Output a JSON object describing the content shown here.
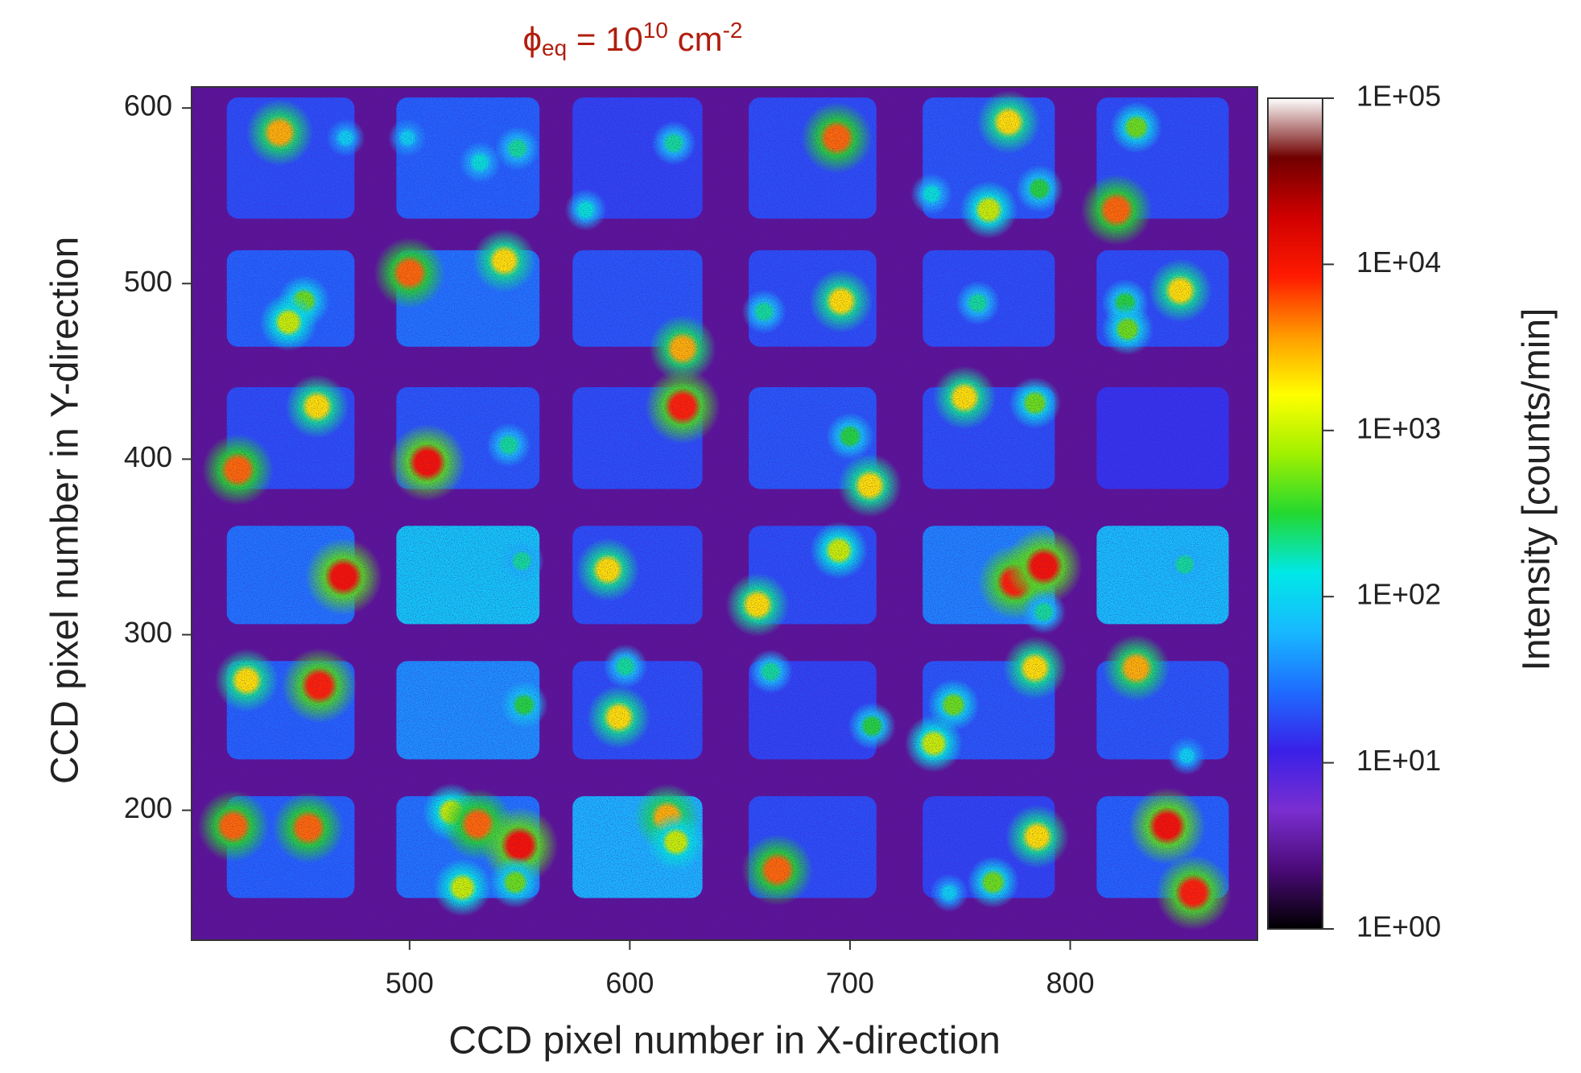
{
  "chart_data": {
    "type": "heatmap",
    "title": {
      "symbol": "ϕ",
      "subscript": "eq",
      "text": " = 10",
      "exponent": "10",
      "unit": " cm",
      "unit_exponent": "-2"
    },
    "x_label": "CCD pixel number in X-direction",
    "y_label": "CCD pixel number in Y-direction",
    "colorbar_label": "Intensity [counts/min]",
    "xlim": [
      401,
      885
    ],
    "xticks": [
      500,
      600,
      700,
      800
    ],
    "ylim": [
      126,
      612
    ],
    "yticks": [
      200,
      300,
      400,
      500,
      600
    ],
    "zlim": [
      1,
      100000
    ],
    "zlog": true,
    "zticks": [
      {
        "value": 1,
        "label": "1E+00"
      },
      {
        "value": 10,
        "label": "1E+01"
      },
      {
        "value": 100,
        "label": "1E+02"
      },
      {
        "value": 1000,
        "label": "1E+03"
      },
      {
        "value": 10000,
        "label": "1E+04"
      },
      {
        "value": 100000,
        "label": "1E+05"
      }
    ],
    "colormap": [
      "#000000",
      "#4a0a78",
      "#7a2fd0",
      "#3a20e8",
      "#1e6cff",
      "#18b8ff",
      "#00e8e8",
      "#22d830",
      "#a0f000",
      "#ffff00",
      "#ff9a00",
      "#ff1a00",
      "#d00000",
      "#700000",
      "#ffffff"
    ],
    "background": 3,
    "pads": {
      "x0": [
        417,
        494,
        574,
        654,
        733,
        812,
        417,
        494,
        574,
        654,
        733,
        812,
        417,
        494,
        574,
        654,
        733,
        812,
        417,
        494,
        574,
        654,
        733,
        812,
        417,
        494,
        574,
        654,
        733,
        812,
        417,
        494,
        574,
        654,
        733,
        812
      ],
      "x1": [
        475,
        559,
        633,
        712,
        793,
        872,
        475,
        559,
        633,
        712,
        793,
        872,
        475,
        559,
        633,
        712,
        793,
        872,
        475,
        559,
        633,
        712,
        793,
        872,
        475,
        559,
        633,
        712,
        793,
        872,
        475,
        559,
        633,
        712,
        793,
        872
      ],
      "y0": [
        537,
        537,
        537,
        537,
        537,
        537,
        464,
        464,
        464,
        464,
        464,
        464,
        383,
        383,
        383,
        383,
        383,
        383,
        306,
        306,
        306,
        306,
        306,
        306,
        229,
        229,
        229,
        229,
        229,
        229,
        150,
        150,
        150,
        150,
        150,
        150
      ],
      "y1": [
        606,
        606,
        606,
        606,
        606,
        606,
        519,
        519,
        519,
        519,
        519,
        519,
        441,
        441,
        441,
        441,
        441,
        441,
        362,
        362,
        362,
        362,
        362,
        362,
        285,
        285,
        285,
        285,
        285,
        285,
        208,
        208,
        208,
        208,
        208,
        208
      ],
      "values": [
        20,
        25,
        18,
        20,
        22,
        20,
        25,
        30,
        22,
        20,
        20,
        20,
        20,
        22,
        20,
        22,
        20,
        15,
        30,
        80,
        20,
        20,
        35,
        70,
        25,
        40,
        20,
        18,
        22,
        22,
        25,
        30,
        60,
        20,
        18,
        25
      ]
    },
    "spots": {
      "x": [
        441,
        471,
        499,
        549,
        532,
        620,
        580,
        694,
        772,
        737,
        763,
        786,
        821,
        830,
        452,
        445,
        500,
        543,
        624,
        661,
        696,
        758,
        850,
        825,
        826,
        422,
        458,
        508,
        545,
        624,
        700,
        709,
        752,
        784,
        470,
        551,
        590,
        695,
        658,
        775,
        788,
        788,
        852,
        426,
        459,
        552,
        595,
        598,
        664,
        710,
        747,
        738,
        784,
        830,
        853,
        420,
        454,
        519,
        531,
        550,
        524,
        548,
        617,
        621,
        667,
        765,
        785,
        844,
        856,
        745
      ],
      "y": [
        586,
        583,
        583,
        577,
        569,
        580,
        542,
        583,
        592,
        551,
        542,
        554,
        542,
        589,
        490,
        478,
        506,
        513,
        463,
        484,
        490,
        489,
        496,
        489,
        474,
        394,
        430,
        398,
        408,
        430,
        413,
        385,
        435,
        432,
        333,
        342,
        337,
        348,
        317,
        330,
        339,
        313,
        340,
        274,
        271,
        260,
        253,
        282,
        279,
        248,
        260,
        238,
        281,
        281,
        231,
        191,
        190,
        199,
        192,
        180,
        156,
        159,
        196,
        182,
        166,
        159,
        185,
        191,
        153,
        153
      ],
      "values": [
        3000,
        100,
        100,
        200,
        150,
        200,
        150,
        5000,
        2000,
        150,
        1000,
        300,
        5000,
        500,
        500,
        1000,
        5000,
        2000,
        3000,
        200,
        2000,
        200,
        2000,
        300,
        500,
        5000,
        2000,
        10000,
        200,
        8000,
        300,
        2000,
        2000,
        500,
        10000,
        200,
        2000,
        1000,
        2000,
        8000,
        10000,
        200,
        200,
        2000,
        8000,
        300,
        2000,
        200,
        200,
        300,
        500,
        1000,
        2000,
        3000,
        100,
        5000,
        5000,
        1000,
        5000,
        10000,
        1000,
        500,
        3000,
        1000,
        5000,
        500,
        2000,
        10000,
        8000,
        100
      ]
    }
  }
}
